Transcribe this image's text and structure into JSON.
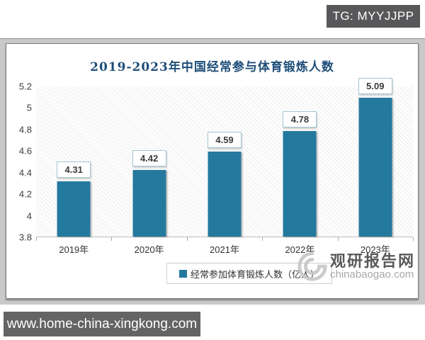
{
  "badges": {
    "top_right": "TG: MYYJJPP",
    "bottom_left": "www.home-china-xingkong.com"
  },
  "chart_data": {
    "type": "bar",
    "title": "2019-2023年中国经常参与体育锻炼人数",
    "categories": [
      "2019年",
      "2020年",
      "2021年",
      "2022年",
      "2023年"
    ],
    "values": [
      4.31,
      4.42,
      4.59,
      4.78,
      5.09
    ],
    "value_labels": [
      "4.31",
      "4.42",
      "4.59",
      "4.78",
      "5.09"
    ],
    "legend": "经常参加体育锻炼人数（亿人）",
    "legend_position": "bottom",
    "xlabel": "",
    "ylabel": "",
    "ylim": [
      3.8,
      5.2
    ],
    "yticks": [
      "5.2",
      "5",
      "4.8",
      "4.6",
      "4.4",
      "4.2",
      "4",
      "3.8"
    ],
    "grid": false,
    "bar_color": "#24799e",
    "title_color": "#1f4e79"
  },
  "watermark": {
    "name": "观研报告网",
    "domain": "chinabaogao.com"
  }
}
